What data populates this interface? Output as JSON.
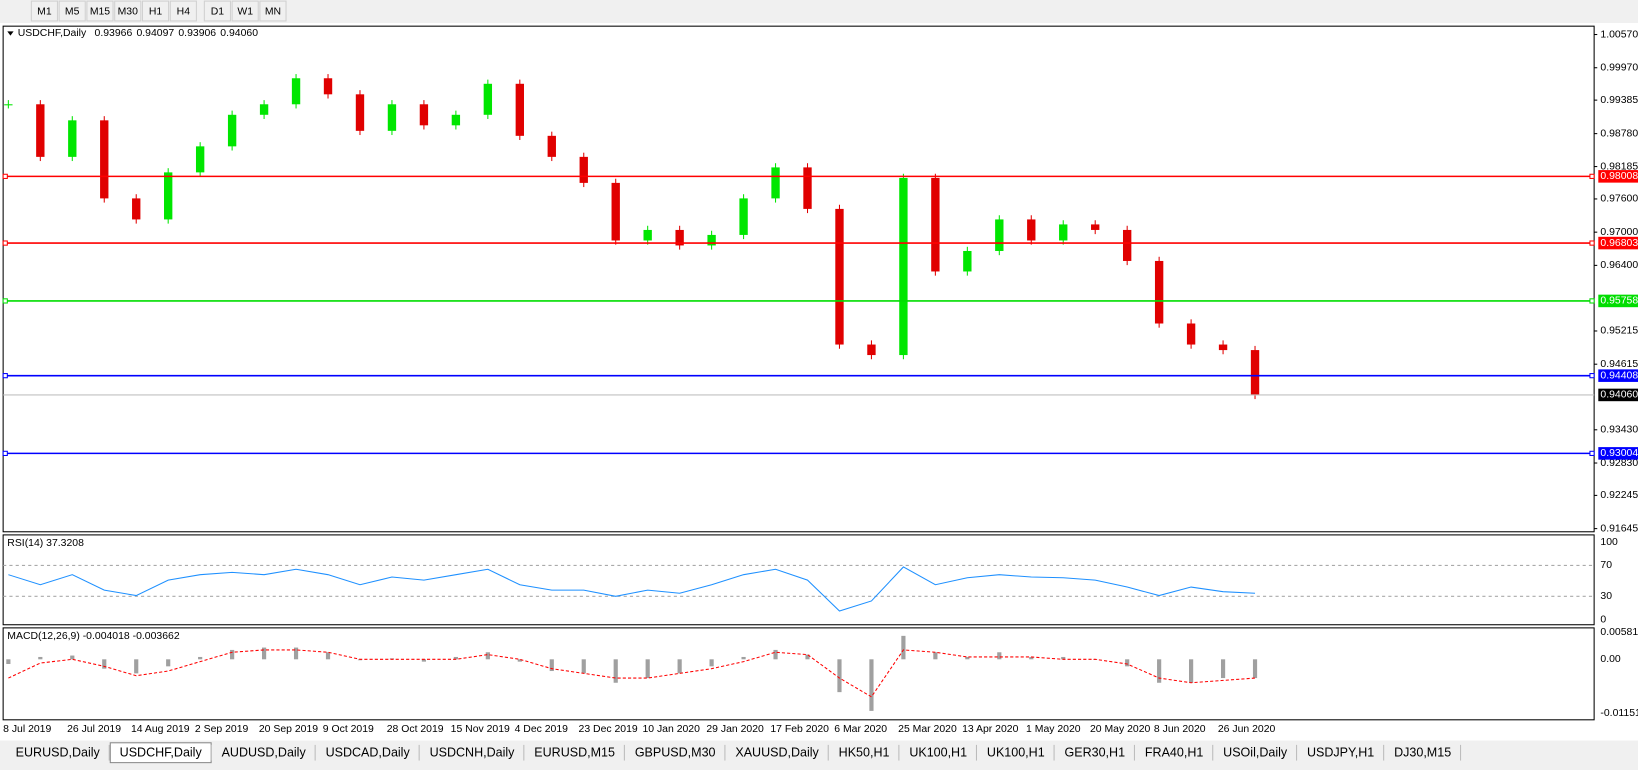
{
  "toolbar": [
    "M1",
    "M5",
    "M15",
    "M30",
    "H1",
    "H4",
    "D1",
    "W1",
    "MN"
  ],
  "tabs": [
    "EURUSD,Daily",
    "USDCHF,Daily",
    "AUDUSD,Daily",
    "USDCAD,Daily",
    "USDCNH,Daily",
    "EURUSD,M15",
    "GBPUSD,M30",
    "XAUUSD,Daily",
    "HK50,H1",
    "UK100,H1",
    "UK100,H1",
    "GER30,H1",
    "FRA40,H1",
    "USOil,Daily",
    "USDJPY,H1",
    "DJ30,M15"
  ],
  "active_tab": 1,
  "chart_data": [
    {
      "type": "candlestick",
      "title": "USDCHF,Daily",
      "ohlc_text": [
        "0.93966",
        "0.94097",
        "0.93906",
        "0.94060"
      ],
      "categories": [
        "8 Jul 2019",
        null,
        "26 Jul 2019",
        null,
        "14 Aug 2019",
        null,
        "2 Sep 2019",
        null,
        "20 Sep 2019",
        null,
        "9 Oct 2019",
        null,
        "28 Oct 2019",
        null,
        "15 Nov 2019",
        null,
        "4 Dec 2019",
        null,
        "23 Dec 2019",
        null,
        "10 Jan 2020",
        null,
        "29 Jan 2020",
        null,
        "17 Feb 2020",
        null,
        "6 Mar 2020",
        null,
        "25 Mar 2020",
        null,
        "13 Apr 2020",
        null,
        "1 May 2020",
        null,
        "20 May 2020",
        null,
        "8 Jun 2020",
        null,
        "26 Jun 2020",
        null
      ],
      "values": [
        0.9931,
        0.9836,
        0.9902,
        0.9761,
        0.9723,
        0.9808,
        0.9855,
        0.9912,
        0.9931,
        0.9978,
        0.9949,
        0.9883,
        0.9931,
        0.9893,
        0.9912,
        0.9968,
        0.9874,
        0.9836,
        0.9789,
        0.9685,
        0.9704,
        0.9676,
        0.9695,
        0.9761,
        0.9817,
        0.9742,
        0.9497,
        0.9478,
        0.9798,
        0.9629,
        0.9666,
        0.9723,
        0.9685,
        0.9714,
        0.9704,
        0.9648,
        0.9535,
        0.9497,
        0.9487,
        0.9406
      ],
      "up_color": "#00e600",
      "down_color": "#e00000",
      "ylim": [
        0.91588,
        1.00721
      ],
      "yticks": [
        {
          "value": 1.0057,
          "label": "1.00570"
        },
        {
          "value": 0.9997,
          "label": "0.99970"
        },
        0.99385,
        {
          "value": 0.9878,
          "label": "0.98780"
        },
        0.98185,
        {
          "value": 0.976,
          "label": "0.97600"
        },
        {
          "value": 0.97,
          "label": "0.97000"
        },
        {
          "value": 0.964,
          "label": "0.96400"
        },
        0.95215,
        0.94615,
        {
          "value": 0.9343,
          "label": "0.93430"
        },
        {
          "value": 0.9283,
          "label": "0.92830"
        },
        0.92245,
        0.91645
      ],
      "levels": [
        {
          "value": 0.98008,
          "color": "#ff0000"
        },
        {
          "value": 0.96803,
          "color": "#ff0000"
        },
        {
          "value": 0.95758,
          "color": "#00dd00"
        },
        {
          "value": 0.94408,
          "color": "#0000ff"
        },
        {
          "value": 0.93004,
          "color": "#0000ff"
        }
      ],
      "current": {
        "value": 0.9406,
        "label": "0.94060"
      }
    },
    {
      "type": "line",
      "title": "RSI(14) 37.3208",
      "values": [
        58,
        45,
        58,
        38,
        31,
        51,
        58,
        61,
        58,
        65,
        58,
        45,
        55,
        51,
        58,
        65,
        45,
        38,
        38,
        30,
        38,
        34,
        45,
        58,
        65,
        51,
        11,
        24,
        68,
        45,
        54,
        58,
        55,
        54,
        51,
        42,
        31,
        42,
        36,
        34
      ],
      "color": "#1e90ff",
      "ylim": [
        -6.8,
        109.5
      ],
      "yticks": [
        0,
        30,
        70,
        100
      ],
      "levels": [
        30,
        70
      ]
    },
    {
      "type": "bar",
      "title": "MACD(12,26,9) -0.004018 -0.003662",
      "values": [
        -0.001,
        0.0005,
        0.0008,
        -0.002,
        -0.003,
        -0.0015,
        0.0005,
        0.002,
        0.0025,
        0.0025,
        0.0015,
        -0.0002,
        0.0002,
        -0.0005,
        0.0005,
        0.0015,
        -0.0005,
        -0.0025,
        -0.003,
        -0.005,
        -0.004,
        -0.003,
        -0.0015,
        0.0005,
        0.002,
        0.001,
        -0.007,
        -0.011,
        0.005,
        0.0015,
        0.0005,
        0.0015,
        0.0005,
        0.0005,
        0,
        -0.0015,
        -0.005,
        -0.005,
        -0.004,
        -0.004
      ],
      "color": "#a0a0a0",
      "signal": {
        "values": [
          -0.004,
          -0.0008,
          0,
          -0.0015,
          -0.0035,
          -0.0025,
          -0.0005,
          0.0015,
          0.002,
          0.002,
          0.0015,
          0,
          0,
          0,
          0,
          0.001,
          0,
          -0.002,
          -0.003,
          -0.004,
          -0.004,
          -0.003,
          -0.002,
          -0.0005,
          0.0015,
          0.001,
          -0.004,
          -0.008,
          0.002,
          0.0015,
          0.0005,
          0.0005,
          0.0005,
          0,
          0,
          -0.001,
          -0.004,
          -0.005,
          -0.0045,
          -0.004
        ],
        "color": "#ff0000"
      },
      "ylim": [
        -0.0129,
        0.0067
      ],
      "yticks": [
        0.005818,
        {
          "value": 0,
          "label": "0.00"
        },
        -0.011514
      ]
    }
  ]
}
